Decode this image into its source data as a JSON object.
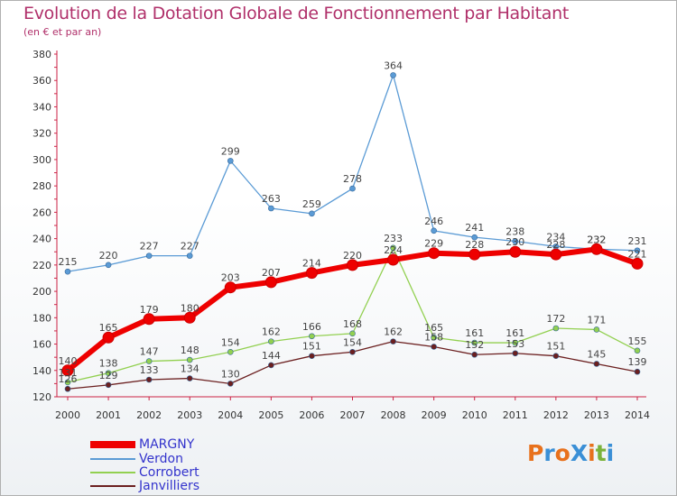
{
  "header": {
    "title": "Evolution de la Dotation Globale de Fonctionnement par Habitant",
    "subtitle": "(en € et par an)"
  },
  "logo": {
    "text": "ProXiti",
    "letters": [
      "P",
      "r",
      "o",
      "X",
      "i",
      "t",
      "i"
    ],
    "colors": [
      "#e8711c",
      "#3a8fd6",
      "#e8711c",
      "#3a8fd6",
      "#e8711c",
      "#7ab23b",
      "#3a8fd6"
    ]
  },
  "chart_data": {
    "type": "line",
    "title": "Evolution de la Dotation Globale de Fonctionnement par Habitant",
    "ylabel": "(en € et par an)",
    "xlabel": "",
    "ylim": [
      120,
      380
    ],
    "ytick_step": 20,
    "grid": false,
    "categories": [
      "2000",
      "2001",
      "2002",
      "2003",
      "2004",
      "2005",
      "2006",
      "2007",
      "2008",
      "2009",
      "2010",
      "2011",
      "2012",
      "2013",
      "2014"
    ],
    "series": [
      {
        "name": "MARGNY",
        "color": "#ee0000",
        "values": [
          140,
          165,
          179,
          180,
          203,
          207,
          214,
          220,
          224,
          229,
          228,
          230,
          228,
          232,
          221
        ]
      },
      {
        "name": "Verdon",
        "color": "#5b9bd5",
        "values": [
          215,
          220,
          227,
          227,
          299,
          263,
          259,
          278,
          364,
          246,
          241,
          238,
          234,
          232,
          231
        ]
      },
      {
        "name": "Corrobert",
        "color": "#92d050",
        "values": [
          131,
          138,
          147,
          148,
          154,
          162,
          166,
          168,
          233,
          165,
          161,
          161,
          172,
          171,
          155
        ]
      },
      {
        "name": "Janvilliers",
        "color": "#6b1f1f",
        "values": [
          126,
          129,
          133,
          134,
          130,
          144,
          151,
          154,
          162,
          158,
          152,
          153,
          151,
          145,
          139
        ]
      }
    ],
    "legend_position": "bottom-left"
  }
}
